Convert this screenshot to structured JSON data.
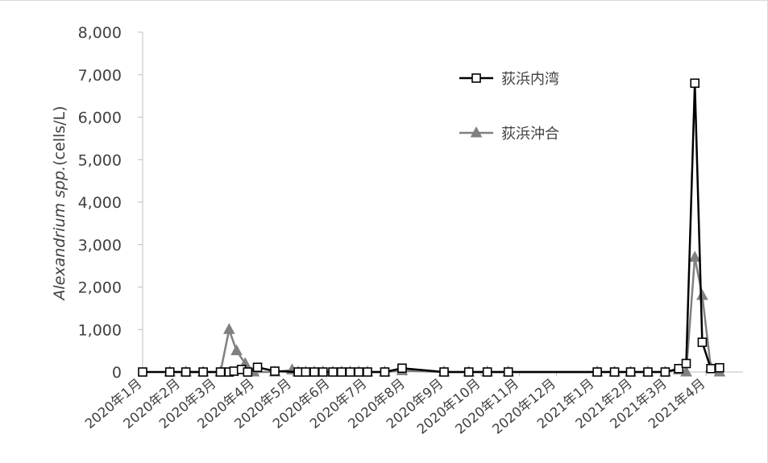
{
  "chart_data": {
    "type": "line",
    "ylabel_italic": "Alexandrium spp.",
    "ylabel_unit": "(cells/L)",
    "ylim": [
      0,
      8000
    ],
    "yticks": [
      0,
      1000,
      2000,
      3000,
      4000,
      5000,
      6000,
      7000,
      8000
    ],
    "ytick_labels": [
      "0",
      "1,000",
      "2,000",
      "3,000",
      "4,000",
      "5,000",
      "6,000",
      "7,000",
      "8,000"
    ],
    "xlim": [
      "2020-01-01",
      "2021-05-01"
    ],
    "xticks": [
      "2020-01-01",
      "2020-02-01",
      "2020-03-01",
      "2020-04-01",
      "2020-05-01",
      "2020-06-01",
      "2020-07-01",
      "2020-08-01",
      "2020-09-01",
      "2020-10-01",
      "2020-11-01",
      "2020-12-01",
      "2021-01-01",
      "2021-02-01",
      "2021-03-01",
      "2021-04-01"
    ],
    "xtick_labels": [
      "2020年1月",
      "2020年2月",
      "2020年3月",
      "2020年4月",
      "2020年5月",
      "2020年6月",
      "2020年7月",
      "2020年8月",
      "2020年9月",
      "2020年10月",
      "2020年11月",
      "2020年12月",
      "2021年1月",
      "2021年2月",
      "2021年3月",
      "2021年4月"
    ],
    "legend_position": "top-right",
    "series": [
      {
        "name": "荻浜内湾",
        "color": "#000000",
        "marker": "square",
        "points": [
          [
            "2020-01-01",
            0
          ],
          [
            "2020-01-23",
            0
          ],
          [
            "2020-02-05",
            0
          ],
          [
            "2020-02-19",
            0
          ],
          [
            "2020-03-04",
            0
          ],
          [
            "2020-03-11",
            0
          ],
          [
            "2020-03-15",
            20
          ],
          [
            "2020-03-21",
            60
          ],
          [
            "2020-03-26",
            0
          ],
          [
            "2020-04-03",
            110
          ],
          [
            "2020-04-17",
            20
          ],
          [
            "2020-05-06",
            0
          ],
          [
            "2020-05-12",
            0
          ],
          [
            "2020-05-19",
            0
          ],
          [
            "2020-05-26",
            0
          ],
          [
            "2020-06-03",
            0
          ],
          [
            "2020-06-10",
            0
          ],
          [
            "2020-06-17",
            0
          ],
          [
            "2020-06-24",
            0
          ],
          [
            "2020-07-01",
            0
          ],
          [
            "2020-07-15",
            0
          ],
          [
            "2020-07-29",
            90
          ],
          [
            "2020-09-01",
            0
          ],
          [
            "2020-09-21",
            0
          ],
          [
            "2020-10-06",
            0
          ],
          [
            "2020-10-23",
            0
          ],
          [
            "2021-01-03",
            0
          ],
          [
            "2021-01-17",
            0
          ],
          [
            "2021-01-30",
            0
          ],
          [
            "2021-02-13",
            0
          ],
          [
            "2021-02-27",
            0
          ],
          [
            "2021-03-10",
            80
          ],
          [
            "2021-03-16",
            200
          ],
          [
            "2021-03-23",
            6800
          ],
          [
            "2021-03-29",
            700
          ],
          [
            "2021-04-05",
            80
          ],
          [
            "2021-04-12",
            100
          ]
        ]
      },
      {
        "name": "荻浜沖合",
        "color": "#808080",
        "marker": "triangle",
        "points": [
          [
            "2020-01-23",
            0
          ],
          [
            "2020-02-05",
            0
          ],
          [
            "2020-02-19",
            0
          ],
          [
            "2020-03-04",
            0
          ],
          [
            "2020-03-11",
            1000
          ],
          [
            "2020-03-17",
            500
          ],
          [
            "2020-03-24",
            200
          ],
          [
            "2020-03-31",
            0
          ],
          [
            "2020-04-17",
            0
          ],
          [
            "2020-05-01",
            50
          ],
          [
            "2020-05-06",
            0
          ],
          [
            "2020-05-12",
            0
          ],
          [
            "2020-05-19",
            0
          ],
          [
            "2020-05-26",
            0
          ],
          [
            "2020-06-03",
            0
          ],
          [
            "2020-06-10",
            0
          ],
          [
            "2020-06-17",
            0
          ],
          [
            "2020-06-24",
            0
          ],
          [
            "2020-07-01",
            0
          ],
          [
            "2020-07-15",
            0
          ],
          [
            "2020-07-29",
            30
          ],
          [
            "2020-09-01",
            0
          ],
          [
            "2020-09-21",
            0
          ],
          [
            "2020-10-06",
            0
          ],
          [
            "2020-10-23",
            0
          ],
          [
            "2021-01-03",
            0
          ],
          [
            "2021-01-17",
            0
          ],
          [
            "2021-01-30",
            0
          ],
          [
            "2021-02-13",
            0
          ],
          [
            "2021-02-27",
            0
          ],
          [
            "2021-03-10",
            50
          ],
          [
            "2021-03-16",
            0
          ],
          [
            "2021-03-23",
            2700
          ],
          [
            "2021-03-29",
            1800
          ],
          [
            "2021-04-05",
            100
          ],
          [
            "2021-04-12",
            0
          ]
        ]
      }
    ]
  }
}
